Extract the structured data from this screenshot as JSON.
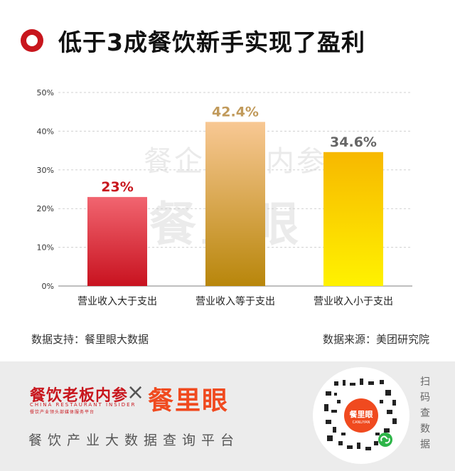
{
  "title": "低于3成餐饮新手实现了盈利",
  "chart_data": {
    "type": "bar",
    "categories": [
      "营业收入大于支出",
      "营业收入等于支出",
      "营业收入小于支出"
    ],
    "values": [
      23,
      42.4,
      34.6
    ],
    "value_labels": [
      "23%",
      "42.4%",
      "34.6%"
    ],
    "yticks": [
      "0%",
      "10%",
      "20%",
      "30%",
      "40%",
      "50%"
    ],
    "ylim": [
      0,
      50
    ],
    "grid": true,
    "colors": {
      "bar1": [
        "#f16570",
        "#c8121f"
      ],
      "bar2": [
        "#f8c894",
        "#b8860b"
      ],
      "bar3": [
        "#f7b800",
        "#fff200"
      ],
      "label1": "#c8161d",
      "label2": "#c19a5b",
      "label3": "#666666"
    }
  },
  "watermark": {
    "line1": "餐企老板内参",
    "line2": "餐里眼"
  },
  "source_left": "数据支持：餐里眼大数据",
  "source_right": "数据来源：美团研究院",
  "footer": {
    "brand1": "餐饮老板内参",
    "brand1_en": "CHINA RESTAURANT INSIDER",
    "brand1_sub": "餐饮产业领头部媒体服务平台",
    "times": "×",
    "brand2": "餐里眼",
    "slogan": "餐饮产业大数据查询平台",
    "qr_logo": "餐里眼",
    "qr_logo_en": "CANLIYAN",
    "scan": [
      "扫",
      "码",
      "查",
      "数",
      "据"
    ]
  },
  "theme": {
    "accent": "#c8161d",
    "brand_orange": "#f04a1f"
  }
}
